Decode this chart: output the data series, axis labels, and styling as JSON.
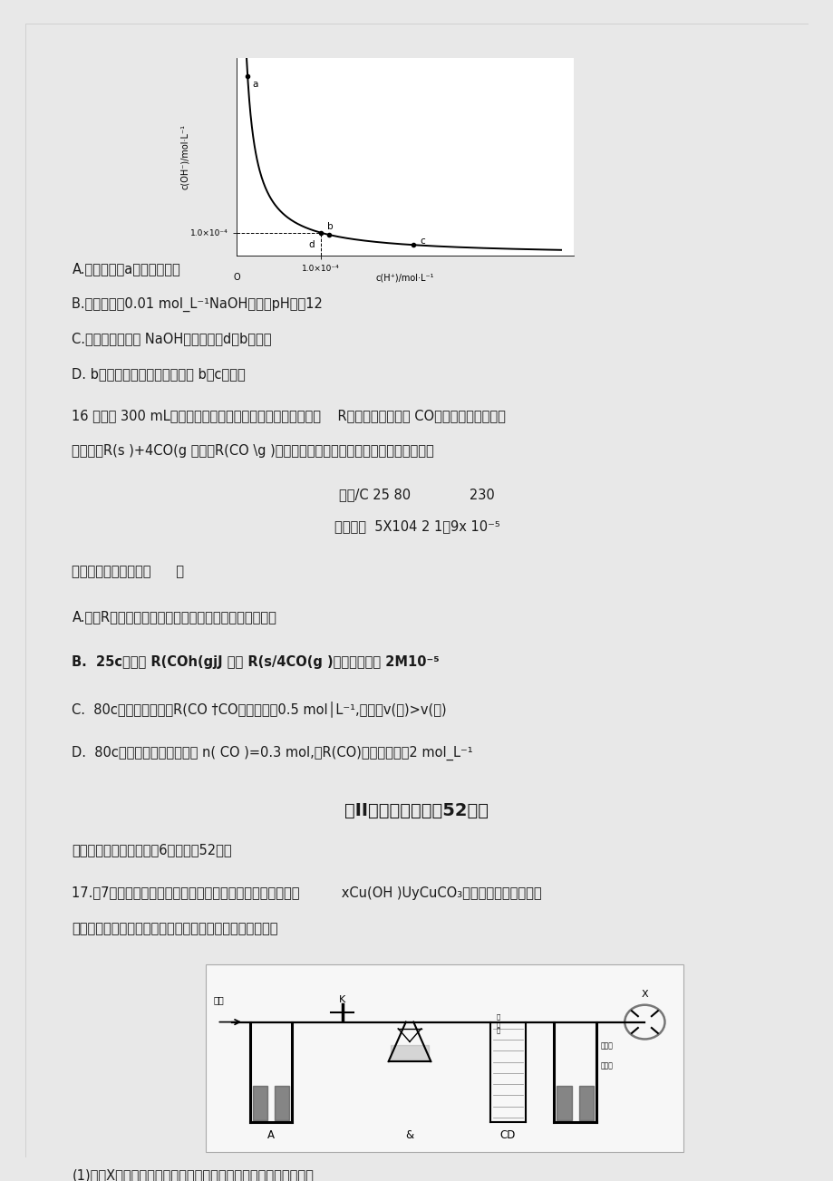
{
  "bg_color": "#e8e8e8",
  "page_bg": "#ffffff",
  "lm": 0.06,
  "fs": 10.5,
  "fs_small": 9.0,
  "graph_ylim": [
    0,
    0.00085
  ],
  "graph_xlim": [
    0,
    0.0004
  ],
  "Kw": 1e-08,
  "line_A": "A.该温度下，a点溶液呈碱性",
  "line_B": "B.该温度下，0.01 mol_L⁻¹NaOH溶液的pH等于12",
  "line_C": "C.该温度下，加入 NaOH可能引起由d向b的变化",
  "line_D": "D. b点时，升高温度，可能引起 b向c的变化",
  "q16_line1": "16 ．向一 300 mL的恒容密闭容器中加入一种多孔粉块状物质    R，并充入一定量的 CO气体，一定条件下发",
  "q16_line2": "生反应：R(s )+4CO(g ？二二R(CO \\g )，已知该反应平衡常数与温度的关系如下表。",
  "tbl_r1": "温度/C 25 80              230",
  "tbl_r2": "平衡常数  5X104 2 1．9x 10⁻⁵",
  "q16_q": "卜列说法不正确的是（      ）",
  "q16_A": "A.物质R做成多孔状可增大接触面积，加快化学反应速率",
  "q16_B": "B.  25c时反应 R(COh(gjJ 二二 R(s/4CO(g )的平衡常数为 2M10⁻⁵",
  "q16_C": "C.  80c时，测得某时刻R(CO †CO的浓度均为0.5 mol│L⁻¹,则此时v(正)>v(逆)",
  "q16_D": "D.  80c时反应达到平衡，测得 n( CO )=0.3 mol,则R(CO)的平衡浓度为2 mol_L⁻¹",
  "sec_title": "第II卷（非选择题冇52分）",
  "sec_sub": "二、非选择题（本题包括6小题，內52分）",
  "q17_l1": "17.（7分）碏式碳酸铜的成分有多种，其化学式一般可表示为          xCu(OH )UyCuCO₃。某实验小组利用下图",
  "q17_l2": "所示的装置（夹持付器省略）为测定某碏式碳酸铜的组成。",
  "q17_sub": "(1)付器X的名称为。装置连接完成后，装入药品前需进行的操作是"
}
